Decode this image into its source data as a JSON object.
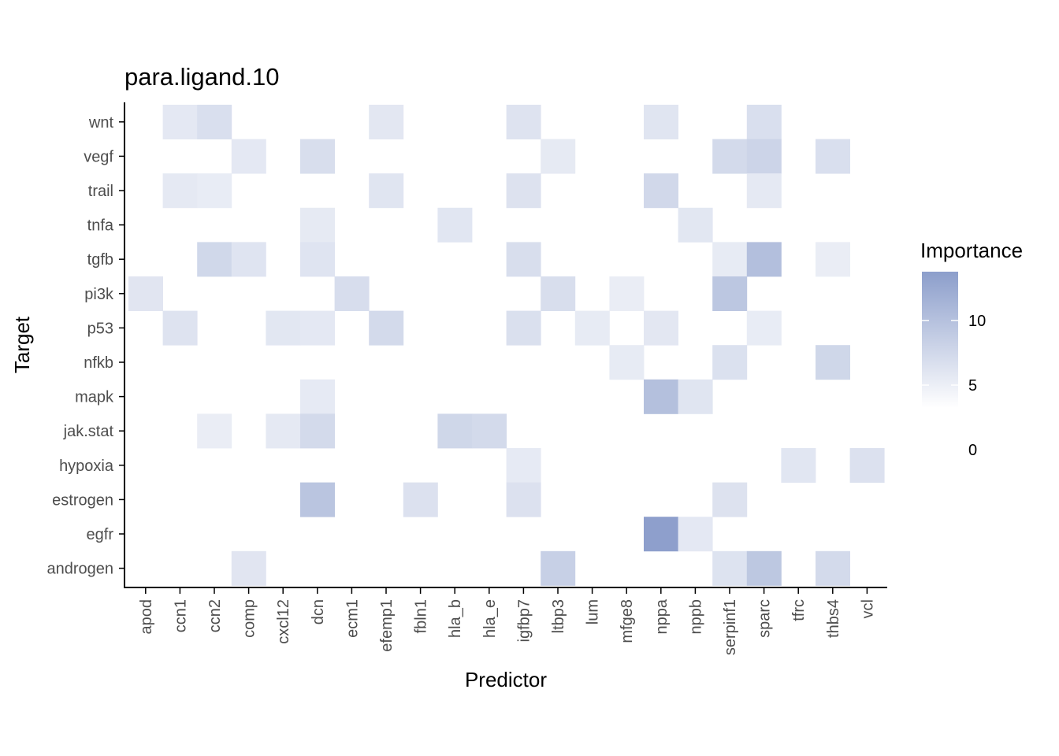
{
  "chart_data": {
    "type": "heatmap",
    "title": "para.ligand.10",
    "xlabel": "Predictor",
    "ylabel": "Target",
    "x_categories": [
      "apod",
      "ccn1",
      "ccn2",
      "comp",
      "cxcl12",
      "dcn",
      "ecm1",
      "efemp1",
      "fbln1",
      "hla_b",
      "hla_e",
      "igfbp7",
      "ltbp3",
      "lum",
      "mfge8",
      "nppa",
      "nppb",
      "serpinf1",
      "sparc",
      "tfrc",
      "thbs4",
      "vcl"
    ],
    "y_categories": [
      "wnt",
      "vegf",
      "trail",
      "tnfa",
      "tgfb",
      "pi3k",
      "p53",
      "nfkb",
      "mapk",
      "jak.stat",
      "hypoxia",
      "estrogen",
      "egfr",
      "androgen"
    ],
    "legend": {
      "title": "Importance",
      "ticks": [
        0,
        5,
        10
      ],
      "range": [
        0,
        14
      ],
      "color_low": "#ffffff",
      "color_high": "#8c9ecb",
      "placement": "right"
    },
    "cells": [
      {
        "x": "ccn1",
        "y": "wnt",
        "v": 3.3
      },
      {
        "x": "ccn2",
        "y": "wnt",
        "v": 4.6
      },
      {
        "x": "efemp1",
        "y": "wnt",
        "v": 3.4
      },
      {
        "x": "igfbp7",
        "y": "wnt",
        "v": 4.0
      },
      {
        "x": "nppa",
        "y": "wnt",
        "v": 3.8
      },
      {
        "x": "sparc",
        "y": "wnt",
        "v": 4.6
      },
      {
        "x": "comp",
        "y": "vegf",
        "v": 3.3
      },
      {
        "x": "dcn",
        "y": "vegf",
        "v": 4.8
      },
      {
        "x": "ltbp3",
        "y": "vegf",
        "v": 3.1
      },
      {
        "x": "serpinf1",
        "y": "vegf",
        "v": 5.3
      },
      {
        "x": "sparc",
        "y": "vegf",
        "v": 6.2
      },
      {
        "x": "thbs4",
        "y": "vegf",
        "v": 4.6
      },
      {
        "x": "ccn1",
        "y": "trail",
        "v": 3.2
      },
      {
        "x": "ccn2",
        "y": "trail",
        "v": 2.8
      },
      {
        "x": "efemp1",
        "y": "trail",
        "v": 3.8
      },
      {
        "x": "igfbp7",
        "y": "trail",
        "v": 4.2
      },
      {
        "x": "nppa",
        "y": "trail",
        "v": 5.6
      },
      {
        "x": "sparc",
        "y": "trail",
        "v": 3.2
      },
      {
        "x": "dcn",
        "y": "tnfa",
        "v": 3.1
      },
      {
        "x": "hla_b",
        "y": "tnfa",
        "v": 3.6
      },
      {
        "x": "nppb",
        "y": "tnfa",
        "v": 3.5
      },
      {
        "x": "ccn2",
        "y": "tgfb",
        "v": 5.7
      },
      {
        "x": "comp",
        "y": "tgfb",
        "v": 3.9
      },
      {
        "x": "dcn",
        "y": "tgfb",
        "v": 3.9
      },
      {
        "x": "igfbp7",
        "y": "tgfb",
        "v": 4.8
      },
      {
        "x": "serpinf1",
        "y": "tgfb",
        "v": 2.9
      },
      {
        "x": "sparc",
        "y": "tgfb",
        "v": 9.2
      },
      {
        "x": "thbs4",
        "y": "tgfb",
        "v": 2.6
      },
      {
        "x": "apod",
        "y": "pi3k",
        "v": 3.7
      },
      {
        "x": "ecm1",
        "y": "pi3k",
        "v": 4.9
      },
      {
        "x": "ltbp3",
        "y": "pi3k",
        "v": 4.8
      },
      {
        "x": "mfge8",
        "y": "pi3k",
        "v": 2.6
      },
      {
        "x": "serpinf1",
        "y": "pi3k",
        "v": 8.1
      },
      {
        "x": "ccn1",
        "y": "p53",
        "v": 4.0
      },
      {
        "x": "cxcl12",
        "y": "p53",
        "v": 3.5
      },
      {
        "x": "dcn",
        "y": "p53",
        "v": 3.3
      },
      {
        "x": "efemp1",
        "y": "p53",
        "v": 5.3
      },
      {
        "x": "igfbp7",
        "y": "p53",
        "v": 4.5
      },
      {
        "x": "lum",
        "y": "p53",
        "v": 2.9
      },
      {
        "x": "nppa",
        "y": "p53",
        "v": 3.4
      },
      {
        "x": "sparc",
        "y": "p53",
        "v": 2.8
      },
      {
        "x": "mfge8",
        "y": "nfkb",
        "v": 2.9
      },
      {
        "x": "serpinf1",
        "y": "nfkb",
        "v": 4.4
      },
      {
        "x": "thbs4",
        "y": "nfkb",
        "v": 5.8
      },
      {
        "x": "dcn",
        "y": "mapk",
        "v": 3.0
      },
      {
        "x": "nppa",
        "y": "mapk",
        "v": 9.1
      },
      {
        "x": "nppb",
        "y": "mapk",
        "v": 3.8
      },
      {
        "x": "ccn2",
        "y": "jak.stat",
        "v": 2.6
      },
      {
        "x": "cxcl12",
        "y": "jak.stat",
        "v": 3.2
      },
      {
        "x": "dcn",
        "y": "jak.stat",
        "v": 5.3
      },
      {
        "x": "hla_b",
        "y": "jak.stat",
        "v": 5.8
      },
      {
        "x": "hla_e",
        "y": "jak.stat",
        "v": 5.3
      },
      {
        "x": "igfbp7",
        "y": "hypoxia",
        "v": 3.0
      },
      {
        "x": "tfrc",
        "y": "hypoxia",
        "v": 3.6
      },
      {
        "x": "vcl",
        "y": "hypoxia",
        "v": 4.3
      },
      {
        "x": "dcn",
        "y": "estrogen",
        "v": 8.4
      },
      {
        "x": "fbln1",
        "y": "estrogen",
        "v": 4.3
      },
      {
        "x": "igfbp7",
        "y": "estrogen",
        "v": 4.3
      },
      {
        "x": "serpinf1",
        "y": "estrogen",
        "v": 4.2
      },
      {
        "x": "nppa",
        "y": "egfr",
        "v": 13.8
      },
      {
        "x": "nppb",
        "y": "egfr",
        "v": 3.3
      },
      {
        "x": "comp",
        "y": "androgen",
        "v": 3.7
      },
      {
        "x": "ltbp3",
        "y": "androgen",
        "v": 6.8
      },
      {
        "x": "serpinf1",
        "y": "androgen",
        "v": 4.1
      },
      {
        "x": "sparc",
        "y": "androgen",
        "v": 8.0
      },
      {
        "x": "thbs4",
        "y": "androgen",
        "v": 5.4
      }
    ]
  }
}
